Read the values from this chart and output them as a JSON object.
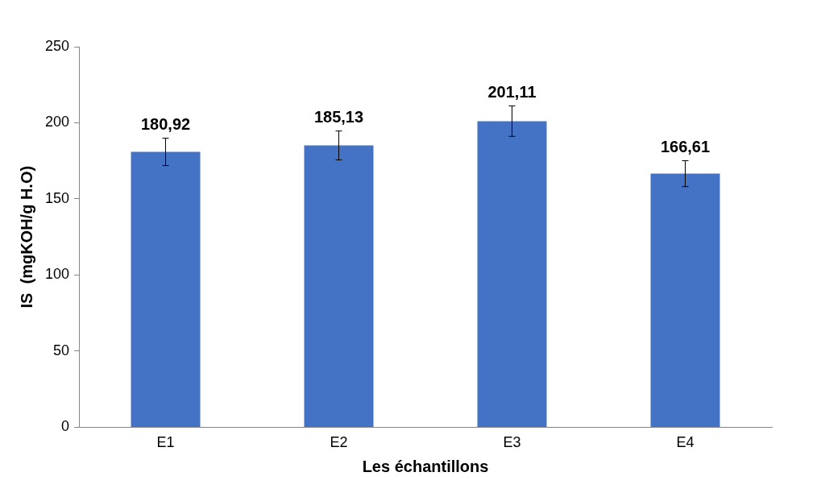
{
  "chart_data": {
    "type": "bar",
    "xlabel": "Les échantillons",
    "ylabel": "IS  (mgKOH/g H.O)",
    "categories": [
      "E1",
      "E2",
      "E3",
      "E4"
    ],
    "values": [
      180.92,
      185.13,
      201.11,
      166.61
    ],
    "errors": [
      9,
      9.5,
      10,
      8.5
    ],
    "value_labels": [
      "180,92",
      "185,13",
      "201,11",
      "166,61"
    ],
    "color": "#4472c4",
    "ylim": [
      0,
      250
    ],
    "yticks": [
      0,
      50,
      100,
      150,
      200,
      250
    ],
    "grid": false,
    "legend": false
  }
}
